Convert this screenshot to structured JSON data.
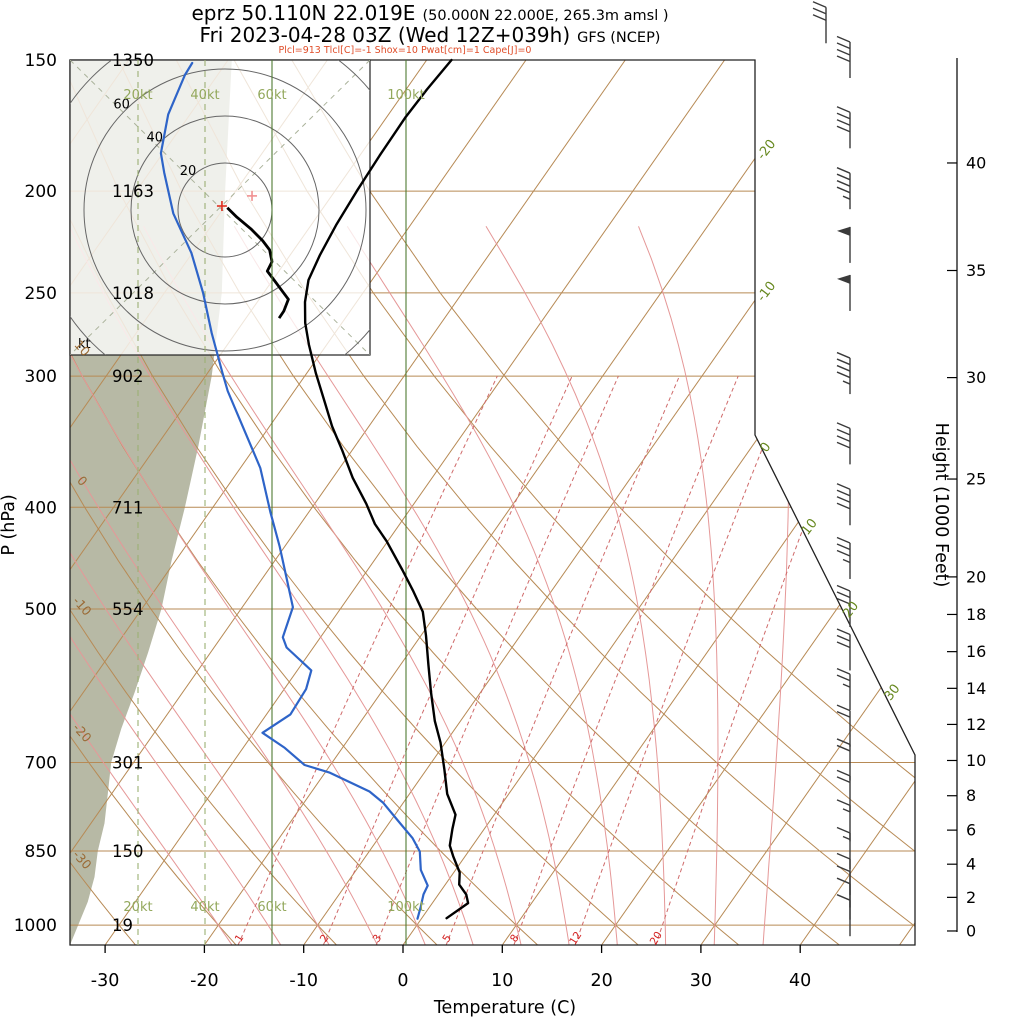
{
  "header": {
    "station": "eprz 50.110N 22.019E",
    "station_detail": "(50.000N 22.000E, 265.3m amsl )",
    "valid": "Fri 2023-04-28 03Z (Wed 12Z+039h)",
    "model": "GFS (NCEP)",
    "indices": "Plcl=913 Tlcl[C]=-1 Shox=10 Pwat[cm]=1 Cape[J]=0"
  },
  "axes": {
    "pressure_label": "P (hPa)",
    "temperature_label": "Temperature (C)",
    "height_label": "Height (1000 Feet)",
    "hodograph_unit": "kt",
    "pressure_ticks": [
      150,
      200,
      250,
      300,
      400,
      500,
      700,
      850,
      1000
    ],
    "geopotential_dam": [
      1350,
      1163,
      1018,
      902,
      711,
      554,
      301,
      150,
      19
    ],
    "temperature_ticks": [
      -30,
      -20,
      -10,
      0,
      10,
      20,
      30,
      40
    ],
    "height_ticks": [
      [
        40,
        188
      ],
      [
        35,
        238
      ],
      [
        30,
        301
      ],
      [
        25,
        376
      ],
      [
        20,
        466
      ],
      [
        18,
        506
      ],
      [
        16,
        549
      ],
      [
        14,
        595
      ],
      [
        12,
        644
      ],
      [
        10,
        697
      ],
      [
        8,
        753
      ],
      [
        6,
        812
      ],
      [
        4,
        875
      ],
      [
        2,
        941
      ],
      [
        0,
        1013
      ]
    ],
    "isotherm_edge_labels": [
      -20,
      -10,
      0,
      10,
      20,
      30
    ],
    "dry_adiabat_labels": [
      10,
      0,
      -10,
      -20,
      -30
    ],
    "mixing_ratio_values": [
      1,
      2,
      3,
      5,
      8,
      12,
      20
    ],
    "wind_scale": [
      {
        "label": "20kt",
        "kt": 20,
        "style": "dashed"
      },
      {
        "label": "40kt",
        "kt": 40,
        "style": "dashed"
      },
      {
        "label": "60kt",
        "kt": 60,
        "style": "solid"
      },
      {
        "label": "100kt",
        "kt": 100,
        "style": "solid"
      }
    ],
    "hodograph_rings_kt": [
      20,
      40,
      60,
      80
    ]
  },
  "chart_data": {
    "type": "skewt-log-p-sounding",
    "pressure_range_hpa": [
      150,
      1045
    ],
    "temperature_axis_range_c": [
      -35,
      45
    ],
    "temperature_profile_c": [
      [
        985,
        2.5
      ],
      [
        953,
        3.6
      ],
      [
        935,
        2.8
      ],
      [
        915,
        1.4
      ],
      [
        891,
        0.6
      ],
      [
        860,
        -1.2
      ],
      [
        840,
        -2.3
      ],
      [
        810,
        -3.2
      ],
      [
        785,
        -3.9
      ],
      [
        750,
        -6.2
      ],
      [
        711,
        -8.2
      ],
      [
        670,
        -10.5
      ],
      [
        639,
        -12.6
      ],
      [
        600,
        -15.0
      ],
      [
        565,
        -17.2
      ],
      [
        530,
        -19.5
      ],
      [
        503,
        -21.5
      ],
      [
        480,
        -24.0
      ],
      [
        459,
        -26.5
      ],
      [
        431,
        -30.1
      ],
      [
        415,
        -32.5
      ],
      [
        397,
        -34.8
      ],
      [
        375,
        -38.0
      ],
      [
        353,
        -41.0
      ],
      [
        335,
        -43.7
      ],
      [
        318,
        -46.1
      ],
      [
        298,
        -49.1
      ],
      [
        280,
        -51.8
      ],
      [
        267,
        -53.7
      ],
      [
        255,
        -55.2
      ],
      [
        243,
        -56.4
      ],
      [
        230,
        -57.0
      ],
      [
        215,
        -57.5
      ],
      [
        200,
        -57.8
      ],
      [
        185,
        -58.0
      ],
      [
        170,
        -58.1
      ],
      [
        160,
        -57.9
      ],
      [
        150,
        -57.5
      ]
    ],
    "dewpoint_profile_c": [
      [
        986,
        -0.4
      ],
      [
        961,
        -0.9
      ],
      [
        935,
        -1.5
      ],
      [
        917,
        -1.7
      ],
      [
        886,
        -3.5
      ],
      [
        851,
        -4.9
      ],
      [
        826,
        -6.6
      ],
      [
        795,
        -9.3
      ],
      [
        765,
        -12.0
      ],
      [
        746,
        -14.2
      ],
      [
        716,
        -19.5
      ],
      [
        704,
        -22.6
      ],
      [
        678,
        -25.8
      ],
      [
        656,
        -29.1
      ],
      [
        630,
        -27.6
      ],
      [
        596,
        -27.8
      ],
      [
        572,
        -28.6
      ],
      [
        544,
        -32.7
      ],
      [
        532,
        -33.8
      ],
      [
        498,
        -34.9
      ],
      [
        466,
        -37.7
      ],
      [
        436,
        -40.5
      ],
      [
        404,
        -43.9
      ],
      [
        367,
        -48.0
      ],
      [
        335,
        -52.7
      ],
      [
        310,
        -56.7
      ],
      [
        298,
        -58.5
      ],
      [
        273,
        -62.4
      ],
      [
        250,
        -66.1
      ],
      [
        229,
        -70.1
      ],
      [
        210,
        -74.7
      ],
      [
        192,
        -78.5
      ],
      [
        184,
        -80.2
      ],
      [
        169,
        -82.2
      ],
      [
        155,
        -83.3
      ],
      [
        151,
        -83.4
      ]
    ],
    "wind_barbs_kt": [
      [
        985,
        8
      ],
      [
        950,
        10
      ],
      [
        925,
        10
      ],
      [
        900,
        12
      ],
      [
        850,
        15
      ],
      [
        800,
        15
      ],
      [
        750,
        18
      ],
      [
        700,
        20
      ],
      [
        650,
        22
      ],
      [
        600,
        25
      ],
      [
        550,
        28
      ],
      [
        500,
        30
      ],
      [
        450,
        35
      ],
      [
        400,
        38
      ],
      [
        350,
        40
      ],
      [
        300,
        45
      ],
      [
        250,
        50
      ],
      [
        225,
        48
      ],
      [
        200,
        45
      ],
      [
        175,
        42
      ],
      [
        150,
        38
      ],
      [
        139,
        30
      ]
    ],
    "wind_speed_profile_kt": [
      [
        985,
        3
      ],
      [
        950,
        5
      ],
      [
        925,
        6
      ],
      [
        900,
        7
      ],
      [
        850,
        8
      ],
      [
        800,
        10
      ],
      [
        750,
        11
      ],
      [
        700,
        12
      ],
      [
        650,
        15
      ],
      [
        600,
        19
      ],
      [
        550,
        23
      ],
      [
        500,
        27
      ],
      [
        450,
        30
      ],
      [
        400,
        34
      ],
      [
        350,
        38
      ],
      [
        300,
        42
      ],
      [
        250,
        45
      ],
      [
        200,
        46
      ],
      [
        150,
        48
      ]
    ],
    "hodograph_uv_kt": [
      [
        1,
        1
      ],
      [
        5,
        -3
      ],
      [
        11,
        -8
      ],
      [
        16,
        -13
      ],
      [
        19,
        -17
      ],
      [
        20,
        -22
      ],
      [
        18,
        -26
      ],
      [
        21,
        -30
      ],
      [
        24,
        -34
      ],
      [
        27,
        -38
      ],
      [
        25,
        -43
      ],
      [
        23,
        -46
      ]
    ],
    "hodograph_markers": [
      {
        "u": -1.3,
        "v": 1.7,
        "color": "#e03020"
      },
      {
        "u": 11.5,
        "v": 6.0,
        "color": "#f09090"
      }
    ]
  },
  "colors": {
    "grid_tan": "#b78a55",
    "moist_adiabat": "#e59898",
    "mixing_ratio": "#cf6a6a",
    "mixing_label": "#d42222",
    "isotherm_label": "#66881e",
    "adiabat_label": "#9a6a35",
    "wind_scale_line": "#9cb074",
    "wind_scale_solid": "#4e7a33",
    "wind_scale_label": "#93a85c",
    "wind_fill": "#b7b9a5",
    "temperature_curve": "#000000",
    "dewpoint_curve": "#2e64c8",
    "indices_text": "#e04e2a",
    "barb": "#3a3a3a",
    "border": "#222222"
  }
}
